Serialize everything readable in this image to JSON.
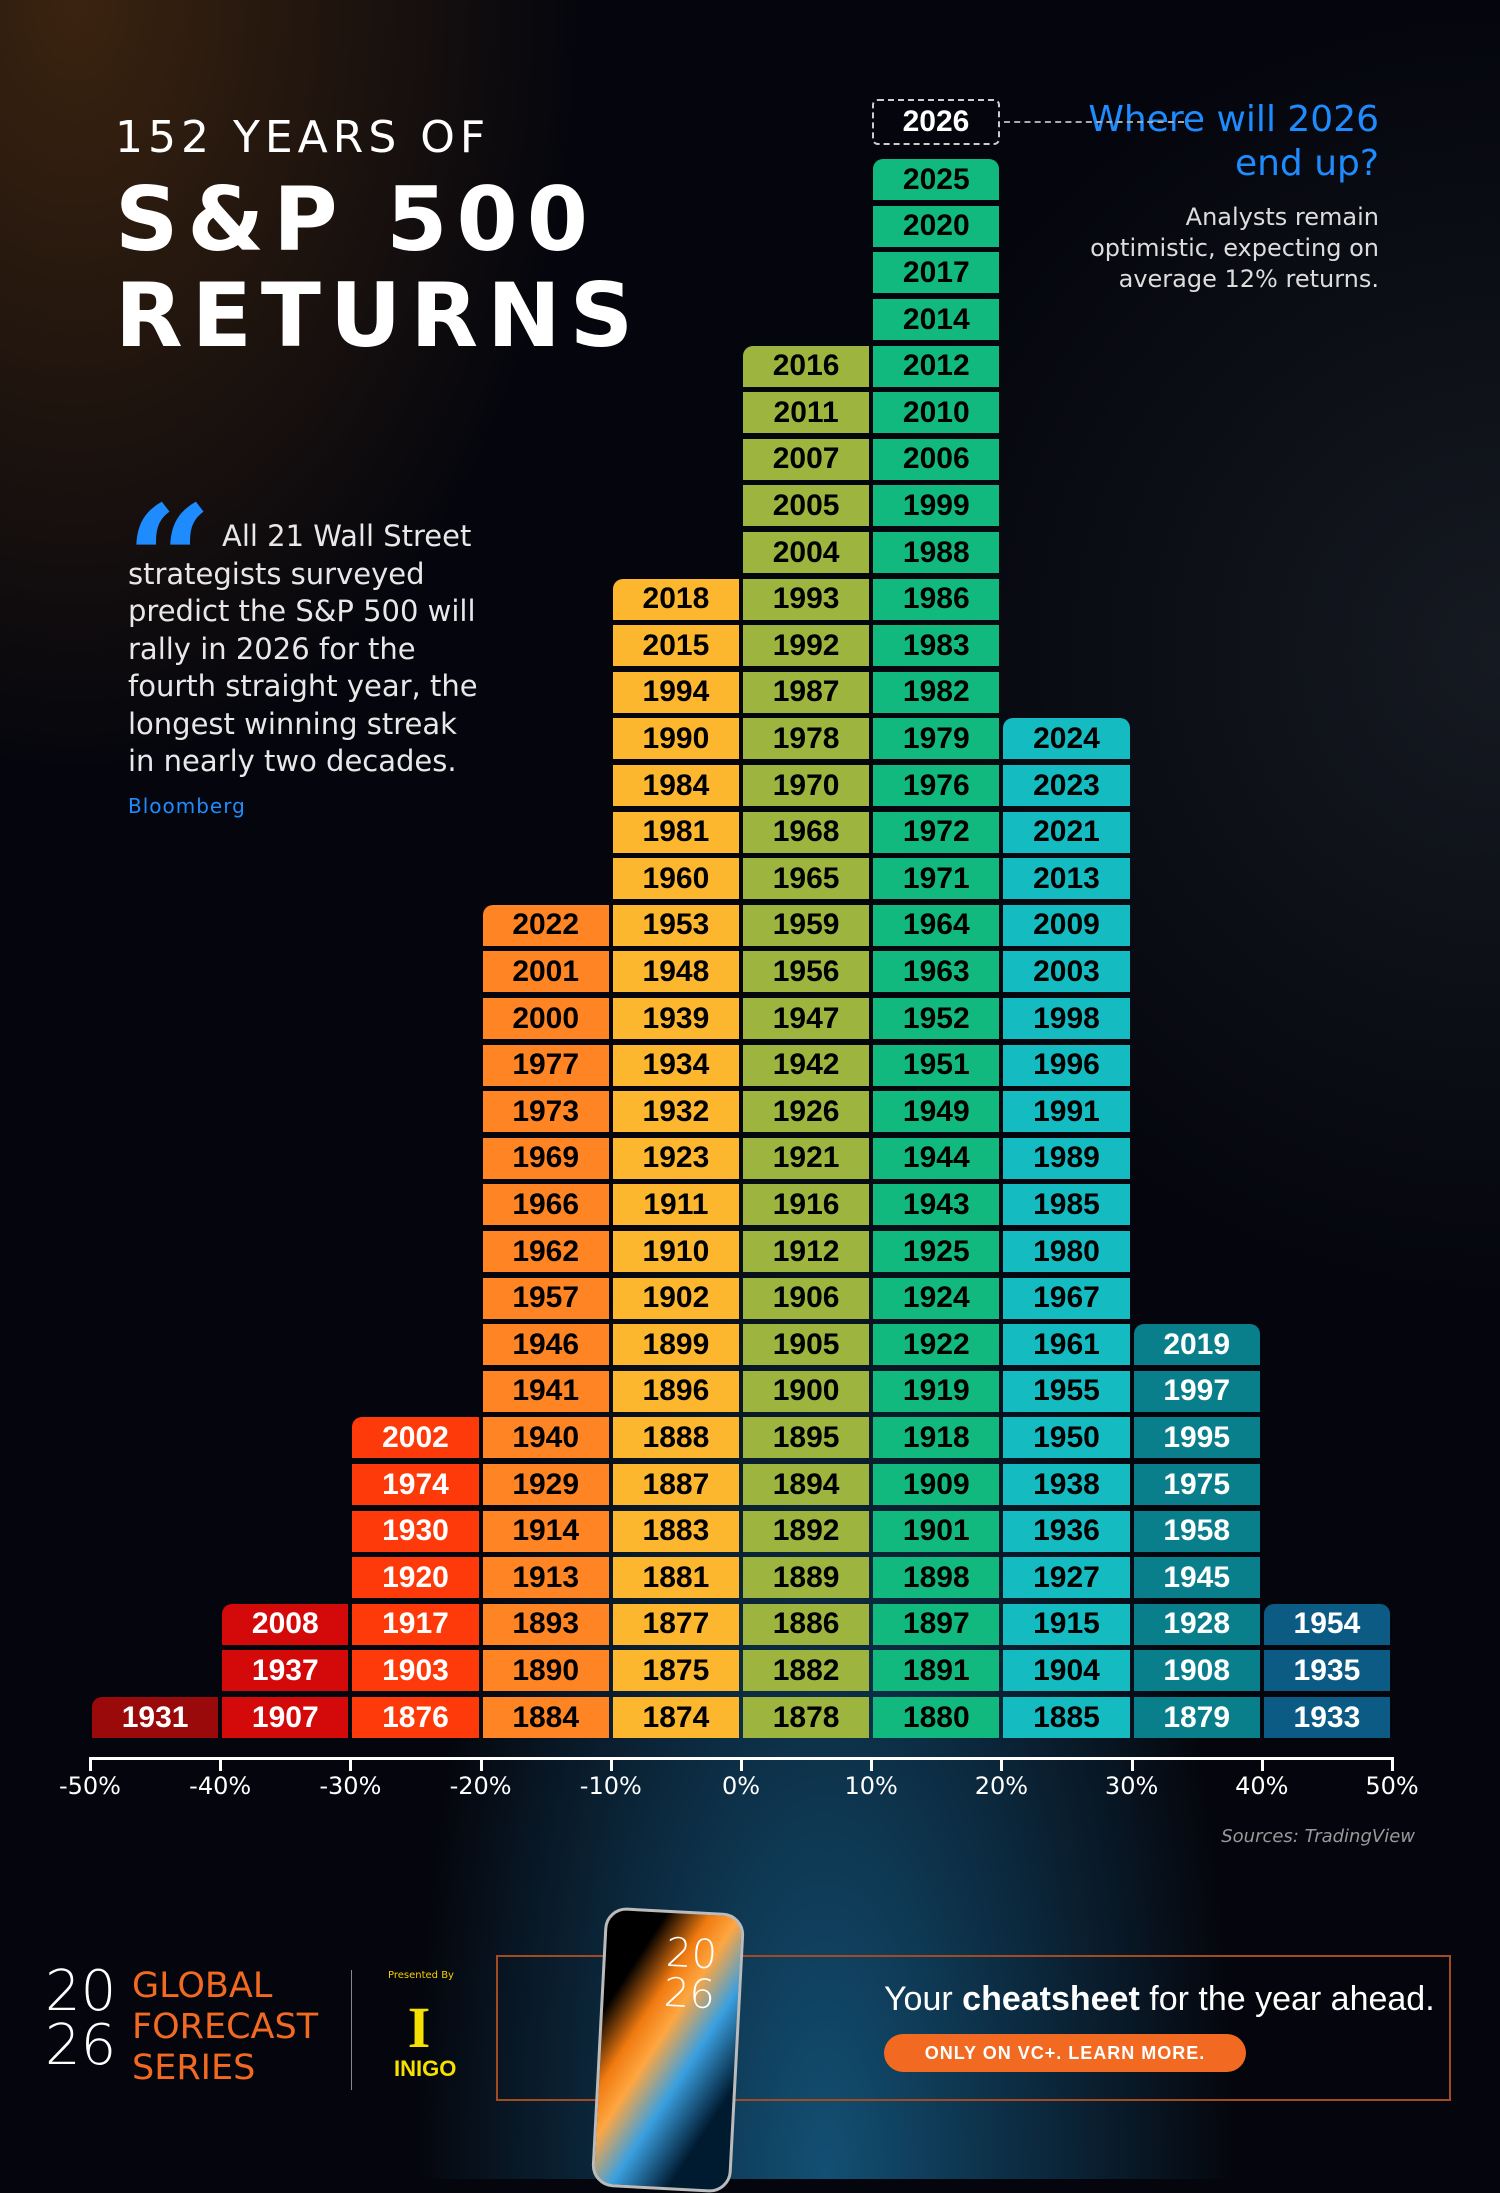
{
  "header": {
    "line1": "152 YEARS OF",
    "line2": "S&P 500",
    "line3": "RETURNS"
  },
  "quote": {
    "icon": "quote-icon",
    "text": "All 21 Wall Street strategists surveyed predict the S&P 500 will rally in 2026 for the fourth straight year, the longest winning streak in nearly two decades.",
    "source": "Bloomberg"
  },
  "callout": {
    "year": "2026",
    "question": "Where will 2026 end up?",
    "body": "Analysts remain optimistic, expecting on average 12% returns."
  },
  "sources": "Sources: TradingView",
  "chart_data": {
    "type": "histogram",
    "title": "152 YEARS OF S&P 500 RETURNS",
    "xlim": [
      -50,
      50
    ],
    "x_ticks": [
      "-50%",
      "-40%",
      "-30%",
      "-20%",
      "-10%",
      "0%",
      "10%",
      "20%",
      "30%",
      "40%",
      "50%"
    ],
    "bins": [
      {
        "range": [
          -50,
          -40
        ],
        "color": "#9b0a0a",
        "text_color": "#ffffff",
        "years": [
          "1931"
        ]
      },
      {
        "range": [
          -40,
          -30
        ],
        "color": "#d40a0a",
        "text_color": "#ffffff",
        "years": [
          "1907",
          "1937",
          "2008"
        ]
      },
      {
        "range": [
          -30,
          -20
        ],
        "color": "#ff3a0a",
        "text_color": "#ffffff",
        "years": [
          "1876",
          "1903",
          "1917",
          "1920",
          "1930",
          "1974",
          "2002"
        ]
      },
      {
        "range": [
          -20,
          -10
        ],
        "color": "#ff8424",
        "text_color": "#000000",
        "years": [
          "1884",
          "1890",
          "1893",
          "1913",
          "1914",
          "1929",
          "1940",
          "1941",
          "1946",
          "1957",
          "1962",
          "1966",
          "1969",
          "1973",
          "1977",
          "2000",
          "2001",
          "2022"
        ]
      },
      {
        "range": [
          -10,
          0
        ],
        "color": "#fdb72f",
        "text_color": "#000000",
        "years": [
          "1874",
          "1875",
          "1877",
          "1881",
          "1883",
          "1887",
          "1888",
          "1896",
          "1899",
          "1902",
          "1910",
          "1911",
          "1923",
          "1932",
          "1934",
          "1939",
          "1948",
          "1953",
          "1960",
          "1981",
          "1984",
          "1990",
          "1994",
          "2015",
          "2018"
        ]
      },
      {
        "range": [
          0,
          10
        ],
        "color": "#9db53f",
        "text_color": "#000000",
        "years": [
          "1878",
          "1882",
          "1886",
          "1889",
          "1892",
          "1894",
          "1895",
          "1900",
          "1905",
          "1906",
          "1912",
          "1916",
          "1921",
          "1926",
          "1942",
          "1947",
          "1956",
          "1959",
          "1965",
          "1968",
          "1970",
          "1978",
          "1987",
          "1992",
          "1993",
          "2004",
          "2005",
          "2007",
          "2011",
          "2016"
        ]
      },
      {
        "range": [
          10,
          20
        ],
        "color": "#12b97e",
        "text_color": "#000000",
        "years": [
          "1880",
          "1891",
          "1897",
          "1898",
          "1901",
          "1909",
          "1918",
          "1919",
          "1922",
          "1924",
          "1925",
          "1943",
          "1944",
          "1949",
          "1951",
          "1952",
          "1963",
          "1964",
          "1971",
          "1972",
          "1976",
          "1979",
          "1982",
          "1983",
          "1986",
          "1988",
          "1999",
          "2006",
          "2010",
          "2012",
          "2014",
          "2017",
          "2020",
          "2025"
        ]
      },
      {
        "range": [
          20,
          30
        ],
        "color": "#14bcc2",
        "text_color": "#000000",
        "years": [
          "1885",
          "1904",
          "1915",
          "1927",
          "1936",
          "1938",
          "1950",
          "1955",
          "1961",
          "1967",
          "1980",
          "1985",
          "1989",
          "1991",
          "1996",
          "1998",
          "2003",
          "2009",
          "2013",
          "2021",
          "2023",
          "2024"
        ]
      },
      {
        "range": [
          30,
          40
        ],
        "color": "#0a7f8c",
        "text_color": "#ffffff",
        "years": [
          "1879",
          "1908",
          "1928",
          "1945",
          "1958",
          "1975",
          "1995",
          "1997",
          "2019"
        ]
      },
      {
        "range": [
          40,
          50
        ],
        "color": "#0b5b85",
        "text_color": "#ffffff",
        "years": [
          "1933",
          "1935",
          "1954"
        ]
      }
    ]
  },
  "footer": {
    "logo_year_top": "20",
    "logo_year_bottom": "26",
    "series": [
      "GLOBAL",
      "FORECAST",
      "SERIES"
    ],
    "presented_by": "Presented By",
    "sponsor": "INIGO",
    "sponsor_mark": "I",
    "phone_year": "20 26",
    "tagline_pre": "Your ",
    "tagline_bold": "cheatsheet",
    "tagline_post": " for the year ahead.",
    "cta": "ONLY ON VC+. LEARN MORE."
  }
}
